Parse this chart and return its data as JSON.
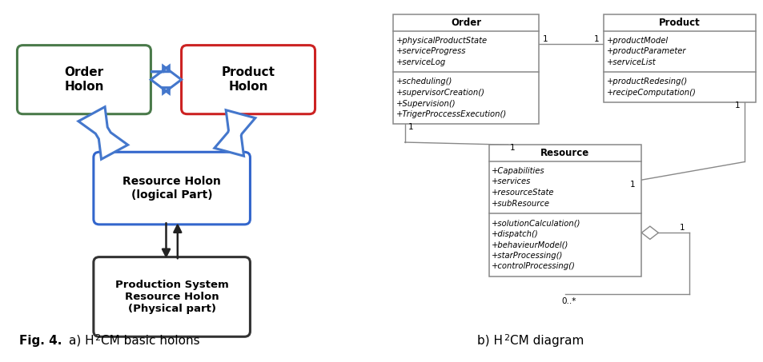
{
  "fig_width": 9.54,
  "fig_height": 4.53,
  "bg_color": "#ffffff",
  "arrow_blue": "#4477cc",
  "arrow_black": "#222222",
  "box_green": "#4a7a4a",
  "box_red": "#cc2222",
  "box_blue": "#3366cc",
  "box_black": "#333333",
  "uml_line": "#888888",
  "order_text": "Order\nHolon",
  "product_text": "Product\nHolon",
  "resource_text": "Resource Holon\n(logical Part)",
  "production_text": "Production System\nResource Holon\n(Physical part)",
  "order_uml_title": "Order",
  "order_uml_attrs": [
    "+physicalProductState",
    "+serviceProgress",
    "+serviceLog"
  ],
  "order_uml_methods": [
    "+scheduling()",
    "+supervisorCreation()",
    "+Supervision()",
    "+TrigerProccessExecution()"
  ],
  "product_uml_title": "Product",
  "product_uml_attrs": [
    "+productModel",
    "+productParameter",
    "+serviceList"
  ],
  "product_uml_methods": [
    "+productRedesing()",
    "+recipeComputation()"
  ],
  "resource_uml_title": "Resource",
  "resource_uml_attrs": [
    "+Capabilities",
    "+services",
    "+resourceState",
    "+subResource"
  ],
  "resource_uml_methods": [
    "+solutionCalculation()",
    "+dispatch()",
    "+behavieurModel()",
    "+starProcessing()",
    "+controlProcessing()"
  ],
  "caption_fig": "Fig. 4.",
  "caption_a_pre": "a) H",
  "caption_a_post": "CM basic holons",
  "caption_b_pre": "b) H",
  "caption_b_post": "CM diagram"
}
